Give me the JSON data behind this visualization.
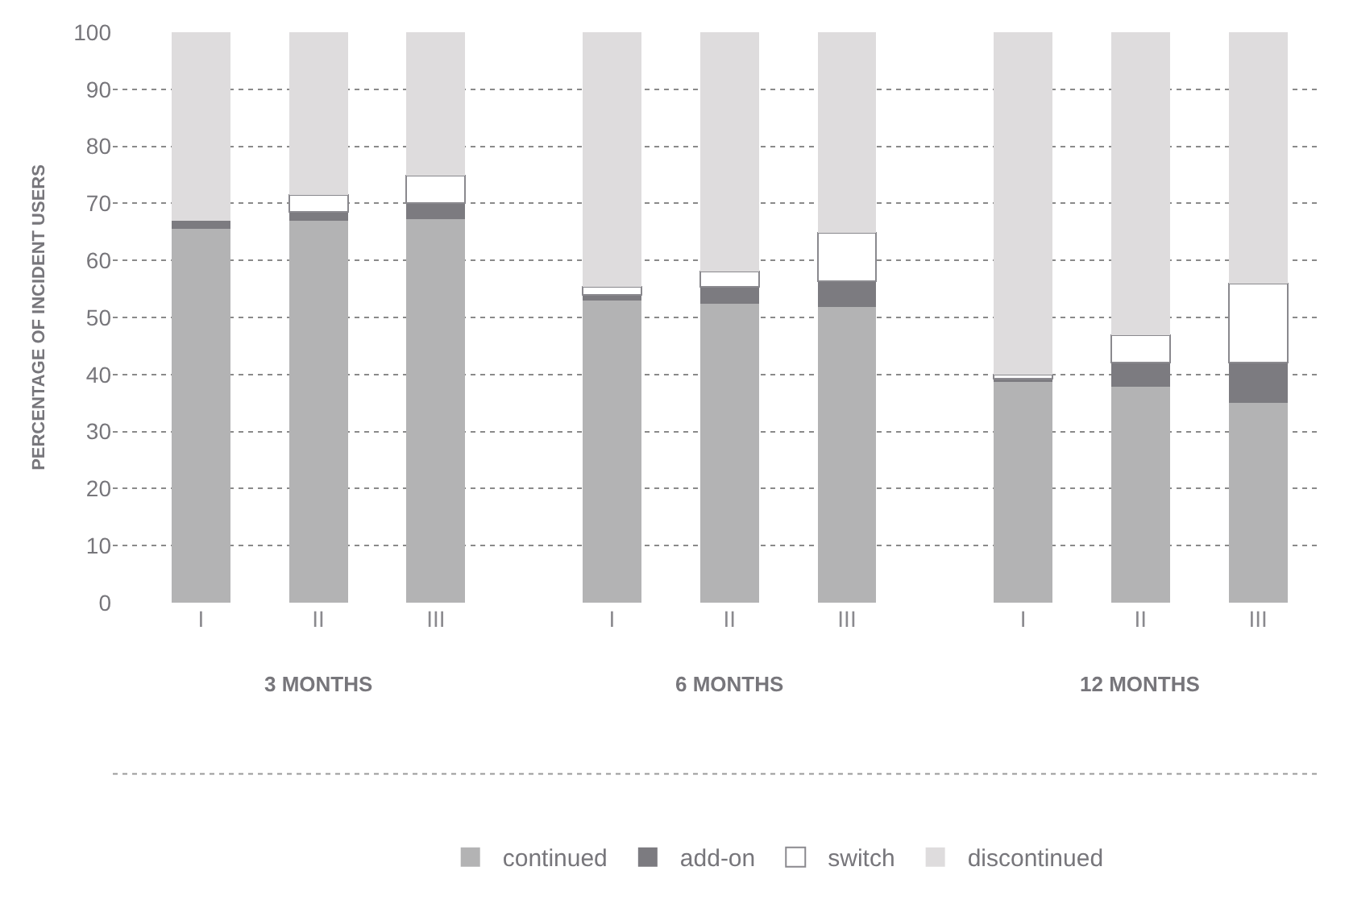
{
  "chart_data": {
    "type": "bar",
    "stacked": true,
    "ylabel": "PERCENTAGE OF INCIDENT USERS",
    "categories": [
      "I",
      "II",
      "III",
      "I",
      "II",
      "III",
      "I",
      "II",
      "III"
    ],
    "annotations": [
      "3 MONTHS",
      "6 MONTHS",
      "12 MONTHS"
    ],
    "series": [
      {
        "name": "continued",
        "color": "#b3b3b4",
        "values": [
          65.6,
          67,
          67.2,
          53,
          52.4,
          51.9,
          38.7,
          37.9,
          35
        ]
      },
      {
        "name": "add-on",
        "color": "#7c7b80",
        "values": [
          1.4,
          1.5,
          2.9,
          1,
          2.9,
          4.5,
          0.5,
          4.2,
          7.1
        ]
      },
      {
        "name": "switch",
        "color": "#ffffff",
        "values": [
          0,
          3,
          4.8,
          1.3,
          2.7,
          8.4,
          0.8,
          4.8,
          13.8
        ]
      },
      {
        "name": "discontinued",
        "color": "#dedcdd",
        "values": [
          33,
          28.5,
          25.1,
          44.7,
          42,
          35.2,
          60,
          53.1,
          44.1
        ]
      }
    ],
    "ylim": [
      0,
      100
    ],
    "yticks": [
      0,
      10,
      20,
      30,
      40,
      50,
      60,
      70,
      80,
      90,
      100
    ],
    "grid": "y",
    "legend": "bottom"
  }
}
